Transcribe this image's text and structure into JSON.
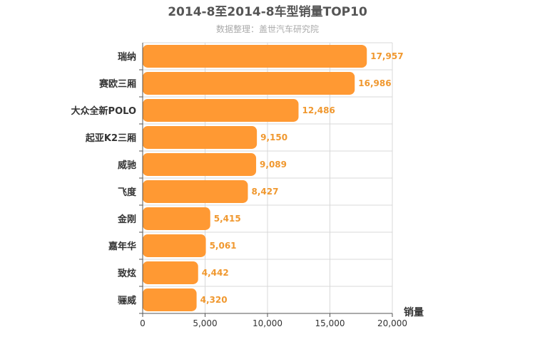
{
  "chart_data": {
    "type": "bar",
    "orientation": "horizontal",
    "title": "2014-8至2014-8车型销量TOP10",
    "subtitle": "数据整理：盖世汽车研究院",
    "xlabel": "销量",
    "ylabel": "",
    "categories": [
      "瑞纳",
      "赛欧三厢",
      "大众全新POLO",
      "起亚K2三厢",
      "威驰",
      "飞度",
      "金刚",
      "嘉年华",
      "致炫",
      "骊威"
    ],
    "values": [
      17957,
      16986,
      12486,
      9150,
      9089,
      8427,
      5415,
      5061,
      4442,
      4320
    ],
    "value_labels": [
      "17,957",
      "16,986",
      "12,486",
      "9,150",
      "9,089",
      "8,427",
      "5,415",
      "5,061",
      "4,442",
      "4,320"
    ],
    "xlim": [
      0,
      20000
    ],
    "x_ticks": [
      0,
      5000,
      10000,
      15000,
      20000
    ],
    "x_tick_labels": [
      "0",
      "5,000",
      "10,000",
      "15,000",
      "20,000"
    ],
    "grid": true,
    "legend": "none",
    "colors": {
      "bar": "#ff9933",
      "value_label": "#f0982f",
      "title": "#555555",
      "subtitle": "#aaaaaa",
      "grid": "#d8d8d8",
      "axis": "#555555",
      "text": "#333333"
    }
  }
}
